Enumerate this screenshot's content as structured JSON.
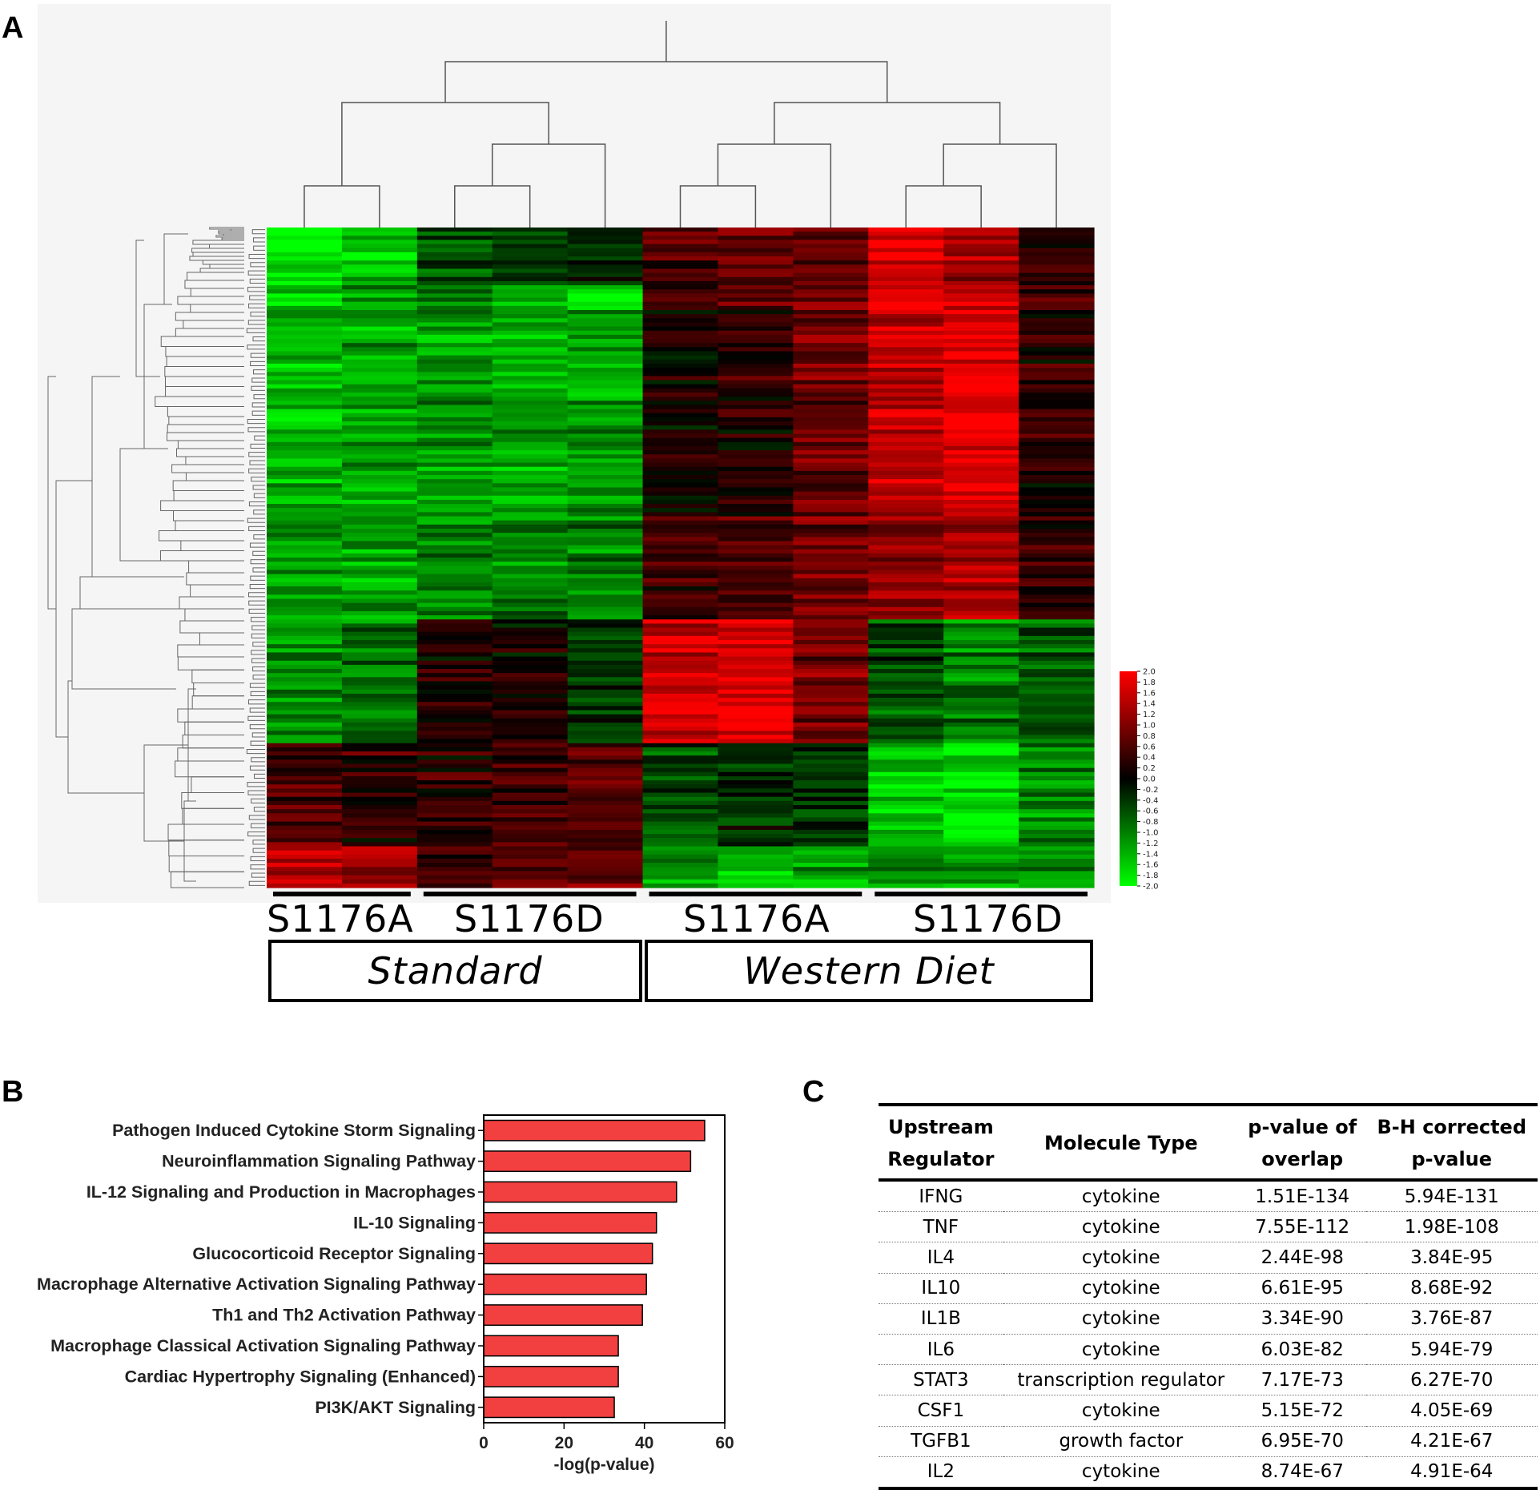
{
  "panels": {
    "a": "A",
    "b": "B",
    "c": "C"
  },
  "heatmap": {
    "colorscale": {
      "max_color": "#ff0000",
      "mid_color": "#000000",
      "min_color": "#00ff00",
      "ticks": [
        "2.0",
        "1.8",
        "1.6",
        "1.4",
        "1.2",
        "1.0",
        "0.8",
        "0.6",
        "0.4",
        "0.2",
        "0.0",
        "-0.2",
        "-0.4",
        "-0.6",
        "-0.8",
        "-1.0",
        "-1.2",
        "-1.4",
        "-1.6",
        "-1.8",
        "-2.0"
      ]
    },
    "samples": 11,
    "groups": [
      {
        "genotype": "S1176A",
        "samples": 2
      },
      {
        "genotype": "S1176D",
        "samples": 3
      },
      {
        "genotype": "S1176A",
        "samples": 3
      },
      {
        "genotype": "S1176D",
        "samples": 3
      }
    ],
    "diets": [
      {
        "label": "Standard"
      },
      {
        "label": "Western Diet"
      }
    ]
  },
  "chart_data": [
    {
      "type": "bar",
      "orientation": "horizontal",
      "categories": [
        "Pathogen Induced Cytokine Storm Signaling",
        "Neuroinflammation Signaling Pathway",
        "IL-12 Signaling and Production in Macrophages",
        "IL-10 Signaling",
        "Glucocorticoid Receptor Signaling",
        "Macrophage Alternative Activation Signaling Pathway",
        "Th1 and Th2 Activation Pathway",
        "Macrophage Classical Activation Signaling Pathway",
        "Cardiac Hypertrophy Signaling (Enhanced)",
        "PI3K/AKT Signaling"
      ],
      "values": [
        55,
        51.5,
        48,
        43,
        42,
        40.5,
        39.5,
        33.5,
        33.5,
        32.5
      ],
      "xlabel": "-log(p-value)",
      "xlim": [
        0,
        60
      ],
      "xticks": [
        "0",
        "20",
        "40",
        "60"
      ],
      "bar_color": "#f24040"
    },
    {
      "type": "table",
      "headers": [
        [
          "Upstream",
          "Regulator"
        ],
        [
          "Molecule Type"
        ],
        [
          "p-value of",
          "overlap"
        ],
        [
          "B-H corrected",
          "p-value"
        ]
      ],
      "rows": [
        [
          "IFNG",
          "cytokine",
          "1.51E-134",
          "5.94E-131"
        ],
        [
          "TNF",
          "cytokine",
          "7.55E-112",
          "1.98E-108"
        ],
        [
          "IL4",
          "cytokine",
          "2.44E-98",
          "3.84E-95"
        ],
        [
          "IL10",
          "cytokine",
          "6.61E-95",
          "8.68E-92"
        ],
        [
          "IL1B",
          "cytokine",
          "3.34E-90",
          "3.76E-87"
        ],
        [
          "IL6",
          "cytokine",
          "6.03E-82",
          "5.94E-79"
        ],
        [
          "STAT3",
          "transcription regulator",
          "7.17E-73",
          "6.27E-70"
        ],
        [
          "CSF1",
          "cytokine",
          "5.15E-72",
          "4.05E-69"
        ],
        [
          "TGFB1",
          "growth factor",
          "6.95E-70",
          "4.21E-67"
        ],
        [
          "IL2",
          "cytokine",
          "8.74E-67",
          "4.91E-64"
        ]
      ]
    }
  ]
}
